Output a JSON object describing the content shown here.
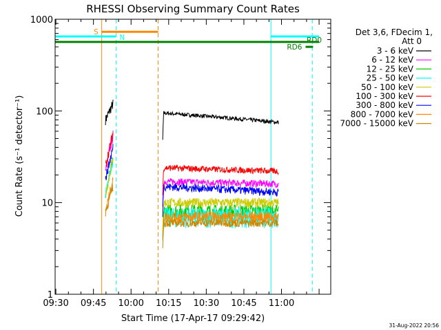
{
  "chart_data": {
    "type": "line",
    "title": "RHESSI Observing Summary Count Rates",
    "xlabel": "Start Time (17-Apr-17 09:29:42)",
    "ylabel": "Count Rate (s⁻¹ detector⁻¹)",
    "yscale": "log",
    "ylim": [
      1,
      1000
    ],
    "xlim": [
      9.4951,
      11.3275
    ],
    "x_ticks": [
      {
        "v": 9.5,
        "label": "09:30"
      },
      {
        "v": 9.75,
        "label": "09:45"
      },
      {
        "v": 10.0,
        "label": "10:00"
      },
      {
        "v": 10.25,
        "label": "10:15"
      },
      {
        "v": 10.5,
        "label": "10:30"
      },
      {
        "v": 10.75,
        "label": "10:45"
      },
      {
        "v": 11.0,
        "label": "11:00"
      }
    ],
    "y_ticks": [
      {
        "v": 1,
        "label": "1"
      },
      {
        "v": 10,
        "label": "10"
      },
      {
        "v": 100,
        "label": "100"
      },
      {
        "v": 1000,
        "label": "1000"
      }
    ],
    "grid": false,
    "legend_position": "right",
    "legend_header": [
      "Det 3,6, FDecim 1,",
      "Att 0"
    ],
    "series": [
      {
        "name": "3 - 6 keV",
        "color": "#000000",
        "burst_start": 80,
        "burst_end": 120,
        "base": 95,
        "end": 75,
        "noise": 0.05
      },
      {
        "name": "6 - 12 keV",
        "color": "#ff00ff",
        "burst_start": 22,
        "burst_end": 55,
        "base": 17,
        "end": 16,
        "noise": 0.09
      },
      {
        "name": "12 - 25 keV",
        "color": "#00cc00",
        "burst_start": 12,
        "burst_end": 30,
        "base": 8,
        "end": 8,
        "noise": 0.2
      },
      {
        "name": "25 - 50 keV",
        "color": "#00ffff",
        "burst_start": 12,
        "burst_end": 30,
        "base": 7,
        "end": 7,
        "noise": 0.25
      },
      {
        "name": "50 - 100 keV",
        "color": "#cccc00",
        "burst_start": 12,
        "burst_end": 32,
        "base": 10,
        "end": 10,
        "noise": 0.12
      },
      {
        "name": "100 - 300 keV",
        "color": "#ff0000",
        "burst_start": 25,
        "burst_end": 58,
        "base": 24,
        "end": 22,
        "noise": 0.08
      },
      {
        "name": "300 - 800 keV",
        "color": "#0000ff",
        "burst_start": 18,
        "burst_end": 40,
        "base": 15,
        "end": 13,
        "noise": 0.1
      },
      {
        "name": "800 - 7000 keV",
        "color": "#ff8800",
        "burst_start": 8,
        "burst_end": 18,
        "base": 7,
        "end": 7,
        "noise": 0.15
      },
      {
        "name": "7000 - 15000 keV",
        "color": "#cc8800",
        "burst_start": 8,
        "burst_end": 15,
        "base": 6,
        "end": 6,
        "noise": 0.1
      }
    ],
    "data_segments": [
      {
        "x_start": 9.83,
        "x_end": 9.88
      },
      {
        "x_start": 10.21,
        "x_end": 10.98
      }
    ],
    "vertical_lines": [
      {
        "x": 9.4951,
        "color": "#00ffff",
        "style": "solid"
      },
      {
        "x": 9.805,
        "color": "#ff8800",
        "style": "solid"
      },
      {
        "x": 9.9,
        "color": "#00ffff",
        "style": "dashed"
      },
      {
        "x": 10.18,
        "color": "#ff8800",
        "style": "dashed"
      },
      {
        "x": 10.93,
        "color": "#00ffff",
        "style": "solid"
      },
      {
        "x": 11.205,
        "color": "#00ffff",
        "style": "dashed"
      }
    ],
    "flag_bars": [
      {
        "label": "S",
        "color": "#ff8800",
        "x_start": 9.805,
        "x_end": 10.18,
        "y": 730,
        "label_side": "left"
      },
      {
        "label": "N",
        "color": "#00ffff",
        "x_start": 9.4951,
        "x_end": 9.9,
        "y": 650,
        "label_side": "right-below"
      },
      {
        "label": "",
        "color": "#00ffff",
        "x_start": 10.93,
        "x_end": 11.25,
        "y": 650,
        "label_side": "none"
      },
      {
        "label": "RD0",
        "color": "#008000",
        "x_start": 9.4951,
        "x_end": 11.25,
        "y": 565,
        "label_side": "right-inside"
      },
      {
        "label": "RD6",
        "color": "#008000",
        "x_start": 11.16,
        "x_end": 11.21,
        "y": 500,
        "label_side": "left"
      }
    ]
  },
  "timestamp": "31-Aug-2022 20:56"
}
